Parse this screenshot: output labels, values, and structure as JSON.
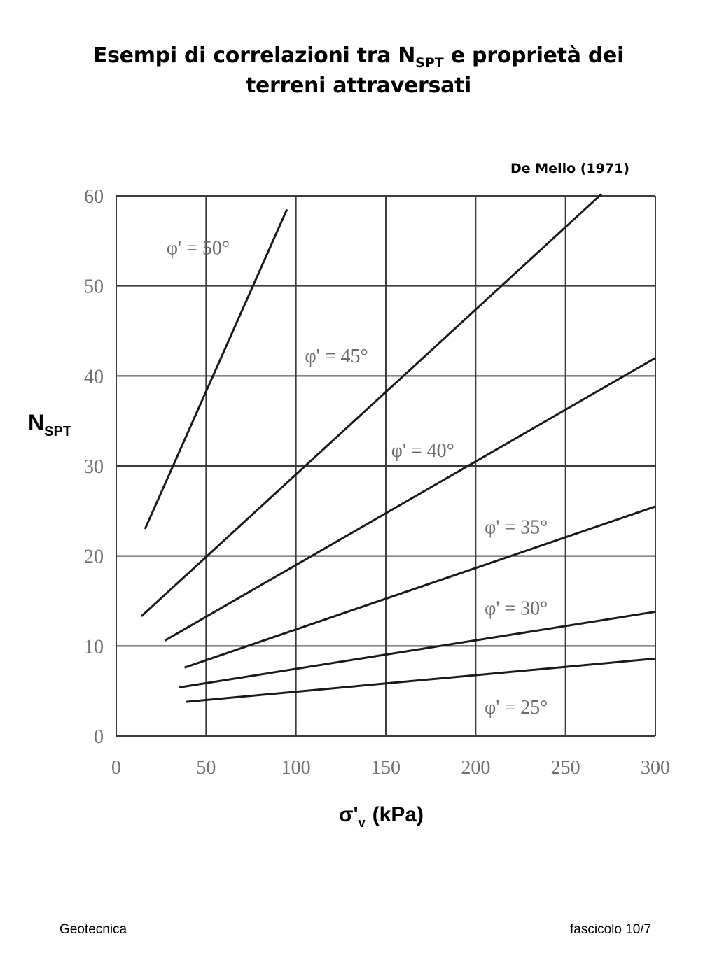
{
  "title": {
    "line1_pre": "Esempi di correlazioni tra N",
    "line1_sub": "SPT",
    "line1_post": " e proprietà dei",
    "line2": "terreni attraversati"
  },
  "source": "De Mello (1971)",
  "y_axis_label": {
    "main": "N",
    "sub": "SPT"
  },
  "x_axis_label": {
    "symbol": "σ'",
    "sub": "v",
    "unit": "(kPa)"
  },
  "footer": {
    "left": "Geotecnica",
    "right": "fascicolo 10/7"
  },
  "chart_data": {
    "type": "line",
    "xlim": [
      0,
      300
    ],
    "ylim": [
      0,
      60
    ],
    "x_ticks": [
      0,
      50,
      100,
      150,
      200,
      250,
      300
    ],
    "y_ticks": [
      0,
      10,
      20,
      30,
      40,
      50,
      60
    ],
    "grid": true,
    "legend": "inline labels",
    "series": [
      {
        "name": "φ' = 50°",
        "x": [
          16,
          95
        ],
        "y": [
          23,
          58.5
        ],
        "label_at": [
          28,
          53.5
        ]
      },
      {
        "name": "φ' = 45°",
        "x": [
          14,
          270
        ],
        "y": [
          13.3,
          60.2
        ],
        "label_at": [
          105,
          41.5
        ]
      },
      {
        "name": "φ' = 40°",
        "x": [
          27,
          300
        ],
        "y": [
          10.6,
          42
        ],
        "label_at": [
          153,
          31
        ]
      },
      {
        "name": "φ' = 35°",
        "x": [
          38,
          300
        ],
        "y": [
          7.6,
          25.5
        ],
        "label_at": [
          205,
          22.5
        ]
      },
      {
        "name": "φ' = 30°",
        "x": [
          35,
          300
        ],
        "y": [
          5.4,
          13.8
        ],
        "label_at": [
          205,
          13.5
        ]
      },
      {
        "name": "φ' = 25°",
        "x": [
          39,
          300
        ],
        "y": [
          3.8,
          8.6
        ],
        "label_at": [
          205,
          2.5
        ]
      }
    ]
  }
}
